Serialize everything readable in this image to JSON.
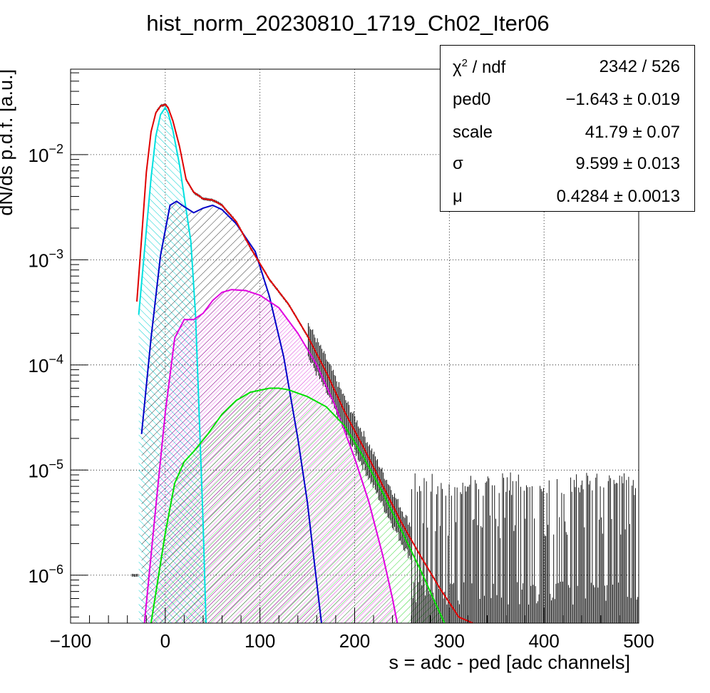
{
  "chart_data": {
    "type": "line",
    "title": "hist_norm_20230810_1719_Ch02_Iter06",
    "xlabel": "s = adc - ped [adc channels]",
    "ylabel": "dN/ds p.d.f. [a.u.]",
    "xlim": [
      -100,
      500
    ],
    "ylim": [
      3.5e-07,
      0.065
    ],
    "yscale": "log",
    "grid": true,
    "x_ticks": [
      -100,
      0,
      100,
      200,
      300,
      400,
      500
    ],
    "x_tick_labels": [
      "−100",
      "0",
      "100",
      "200",
      "300",
      "400",
      "500"
    ],
    "y_ticks": [
      1e-06,
      1e-05,
      0.0001,
      0.001,
      0.01
    ],
    "y_tick_labels": [
      {
        "base": "10",
        "exp": "−6"
      },
      {
        "base": "10",
        "exp": "−5"
      },
      {
        "base": "10",
        "exp": "−4"
      },
      {
        "base": "10",
        "exp": "−3"
      },
      {
        "base": "10",
        "exp": "−2"
      }
    ],
    "series": [
      {
        "color": "#00e0e0",
        "hatch": "cyan",
        "x": [
          -28,
          -22,
          -15,
          -10,
          -5,
          0,
          3,
          8,
          15,
          22,
          27,
          32,
          36,
          40,
          43
        ],
        "y": [
          0.0003,
          0.0012,
          0.006,
          0.015,
          0.024,
          0.028,
          0.025,
          0.017,
          0.008,
          0.003,
          0.0015,
          0.0003,
          3e-05,
          3e-06,
          3.5e-07
        ]
      },
      {
        "color": "#0000c8",
        "hatch": "black",
        "x": [
          -25,
          -15,
          -5,
          5,
          12,
          20,
          30,
          40,
          50,
          60,
          75,
          95,
          110,
          125,
          140,
          150,
          158,
          165
        ],
        "y": [
          2.2e-05,
          0.00018,
          0.0011,
          0.0033,
          0.0036,
          0.0032,
          0.0028,
          0.0031,
          0.0033,
          0.003,
          0.0022,
          0.0012,
          0.00045,
          0.00012,
          2e-05,
          5e-06,
          1.2e-06,
          3.5e-07
        ]
      },
      {
        "color": "#e000e0",
        "hatch": "magenta",
        "x": [
          -22,
          -10,
          0,
          10,
          20,
          30,
          40,
          50,
          60,
          70,
          85,
          100,
          120,
          140,
          160,
          180,
          200,
          215,
          230,
          240,
          245
        ],
        "y": [
          3.5e-07,
          4.5e-06,
          3.5e-05,
          0.00018,
          0.00027,
          0.00027,
          0.00031,
          0.00041,
          0.00049,
          0.00052,
          0.00051,
          0.00046,
          0.00035,
          0.0002,
          0.0001,
          4e-05,
          1.3e-05,
          5e-06,
          1.5e-06,
          6e-07,
          3.5e-07
        ]
      },
      {
        "color": "#00e000",
        "hatch": "green",
        "x": [
          -15,
          0,
          10,
          20,
          30,
          45,
          60,
          75,
          90,
          110,
          120,
          130,
          150,
          170,
          190,
          210,
          230,
          250,
          270,
          285,
          295
        ],
        "y": [
          3.5e-07,
          2.5e-06,
          7.5e-06,
          1.2e-05,
          1.5e-05,
          2.2e-05,
          3.4e-05,
          4.6e-05,
          5.5e-05,
          6e-05,
          6e-05,
          5.8e-05,
          5e-05,
          4e-05,
          2.6e-05,
          1.3e-05,
          6e-06,
          2.6e-06,
          1.1e-06,
          5.5e-07,
          3.5e-07
        ]
      },
      {
        "color": "#e00000",
        "x": [
          -30,
          -25,
          -20,
          -15,
          -10,
          -5,
          0,
          3,
          8,
          15,
          22,
          30,
          40,
          50,
          60,
          75,
          90,
          110,
          130,
          150,
          170,
          190,
          210,
          230,
          250,
          270,
          290,
          310,
          325
        ],
        "y": [
          0.0004,
          0.0016,
          0.0068,
          0.0165,
          0.025,
          0.029,
          0.03,
          0.028,
          0.021,
          0.012,
          0.0058,
          0.0044,
          0.0038,
          0.0037,
          0.0033,
          0.0023,
          0.0013,
          0.00065,
          0.00038,
          0.00019,
          8.5e-05,
          3.5e-05,
          1.6e-05,
          7e-06,
          3.1e-06,
          1.5e-06,
          7.5e-07,
          4e-07,
          3.5e-07
        ]
      }
    ]
  },
  "stats": [
    {
      "key": "χ",
      "key_sup": "2",
      "key_suffix": " / ndf",
      "value": "2342 / 526"
    },
    {
      "key": "ped0",
      "value": "−1.643 ± 0.019"
    },
    {
      "key": "scale",
      "value": "41.79 ± 0.07"
    },
    {
      "key": "σ",
      "value": "9.599 ± 0.013"
    },
    {
      "key": "μ",
      "value": "0.4284 ± 0.0013"
    }
  ]
}
